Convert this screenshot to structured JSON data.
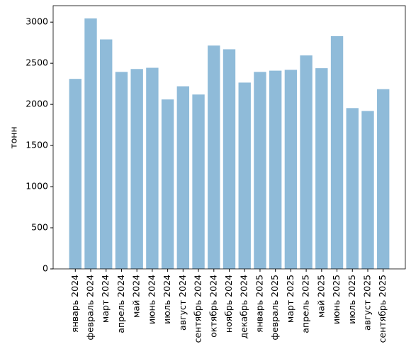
{
  "chart_data": {
    "type": "bar",
    "y_label": "тонн",
    "categories": [
      "январь 2024",
      "февраль 2024",
      "март 2024",
      "апрель 2024",
      "май 2024",
      "июнь 2024",
      "июль 2024",
      "август 2024",
      "сентябрь 2024",
      "октябрь 2024",
      "ноябрь 2024",
      "декабрь 2024",
      "январь 2025",
      "февраль 2025",
      "март 2025",
      "апрель 2025",
      "май 2025",
      "июнь 2025",
      "июль 2025",
      "август 2025",
      "сентябрь 2025"
    ],
    "values": [
      2310,
      3045,
      2790,
      2395,
      2430,
      2445,
      2060,
      2220,
      2120,
      2715,
      2670,
      2265,
      2395,
      2410,
      2420,
      2595,
      2440,
      2830,
      1955,
      1920,
      2185
    ],
    "color": "#8fbbd9",
    "ylim": [
      0,
      3200
    ],
    "yticks": [
      0,
      500,
      1000,
      1500,
      2000,
      2500,
      3000
    ],
    "grid": false
  }
}
